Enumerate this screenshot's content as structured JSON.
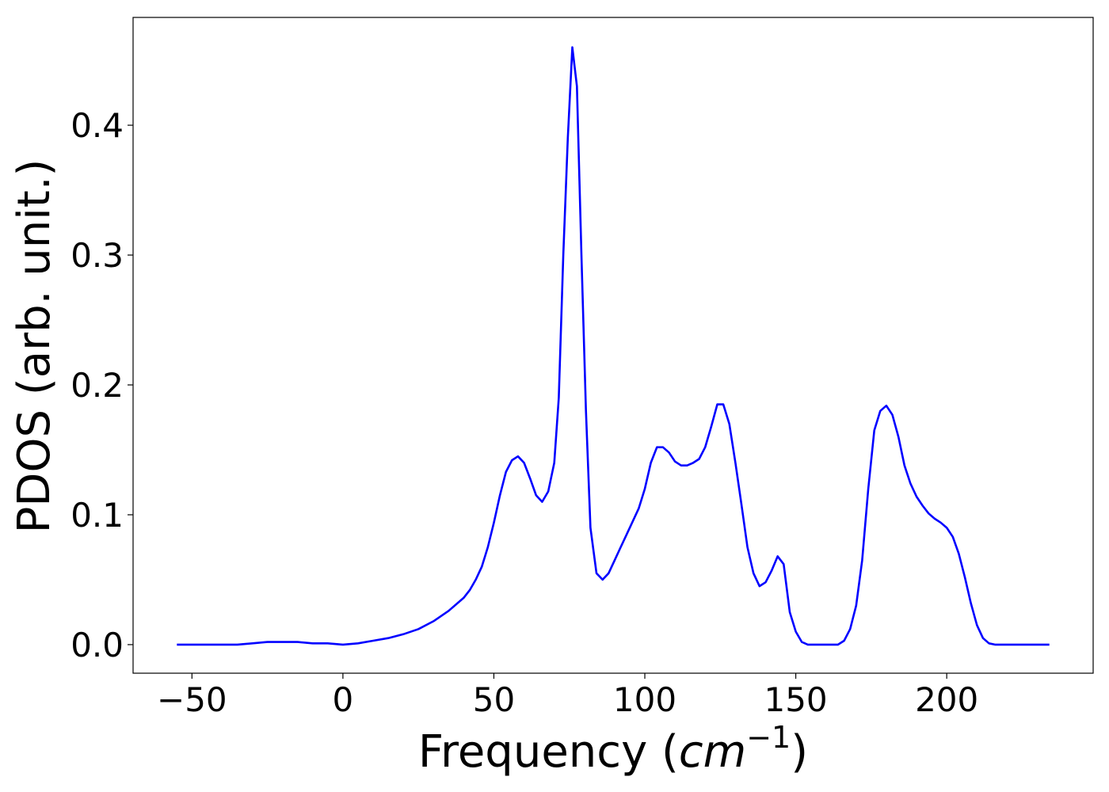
{
  "chart_data": {
    "type": "line",
    "title": "",
    "xlabel": "Frequency (",
    "xlabel_math": "cm",
    "xlabel_sup": "−1",
    "xlabel_close": ")",
    "ylabel": "PDOS (arb. unit.)",
    "xlim": [
      -69.5,
      248.5
    ],
    "ylim": [
      -0.022,
      0.483
    ],
    "xticks": [
      -50,
      0,
      50,
      100,
      150,
      200
    ],
    "xtick_labels": [
      "−50",
      "0",
      "50",
      "100",
      "150",
      "200"
    ],
    "yticks": [
      0.0,
      0.1,
      0.2,
      0.3,
      0.4
    ],
    "ytick_labels": [
      "0.0",
      "0.1",
      "0.2",
      "0.3",
      "0.4"
    ],
    "grid": false,
    "legend": "none",
    "series": [
      {
        "color": "#0000ff",
        "x": [
          -55,
          -45,
          -35,
          -30,
          -25,
          -20,
          -15,
          -10,
          -5,
          0,
          5,
          10,
          15,
          20,
          25,
          30,
          35,
          40,
          42,
          44,
          46,
          48,
          50,
          52,
          54,
          56,
          58,
          60,
          62,
          64,
          66,
          68,
          70,
          71.5,
          73,
          74.5,
          76,
          77.5,
          79,
          80.5,
          82,
          84,
          86,
          88,
          90,
          92,
          94,
          96,
          98,
          100,
          102,
          104,
          106,
          108,
          110,
          112,
          114,
          116,
          118,
          120,
          122,
          124,
          126,
          128,
          130,
          132,
          134,
          136,
          138,
          140,
          142,
          144,
          146,
          148,
          150,
          152,
          154,
          156,
          160,
          164,
          166,
          168,
          170,
          172,
          174,
          176,
          178,
          180,
          182,
          184,
          186,
          188,
          190,
          192,
          194,
          196,
          198,
          200,
          202,
          204,
          206,
          208,
          210,
          212,
          214,
          216,
          220,
          226,
          234
        ],
        "y": [
          0.0,
          0.0,
          0.0,
          0.001,
          0.002,
          0.002,
          0.002,
          0.001,
          0.001,
          0.0,
          0.001,
          0.003,
          0.005,
          0.008,
          0.012,
          0.018,
          0.026,
          0.036,
          0.042,
          0.05,
          0.06,
          0.075,
          0.094,
          0.115,
          0.133,
          0.142,
          0.145,
          0.14,
          0.128,
          0.115,
          0.11,
          0.118,
          0.14,
          0.19,
          0.3,
          0.39,
          0.46,
          0.43,
          0.3,
          0.18,
          0.09,
          0.055,
          0.05,
          0.055,
          0.065,
          0.075,
          0.085,
          0.095,
          0.105,
          0.12,
          0.14,
          0.152,
          0.152,
          0.148,
          0.141,
          0.138,
          0.138,
          0.14,
          0.143,
          0.152,
          0.168,
          0.185,
          0.185,
          0.17,
          0.14,
          0.108,
          0.075,
          0.055,
          0.045,
          0.048,
          0.057,
          0.068,
          0.062,
          0.025,
          0.01,
          0.002,
          0.0,
          0.0,
          0.0,
          0.0,
          0.003,
          0.012,
          0.03,
          0.065,
          0.12,
          0.165,
          0.18,
          0.184,
          0.177,
          0.16,
          0.138,
          0.124,
          0.114,
          0.107,
          0.101,
          0.097,
          0.094,
          0.09,
          0.083,
          0.07,
          0.052,
          0.032,
          0.015,
          0.005,
          0.001,
          0.0,
          0.0,
          0.0,
          0.0
        ]
      }
    ]
  }
}
